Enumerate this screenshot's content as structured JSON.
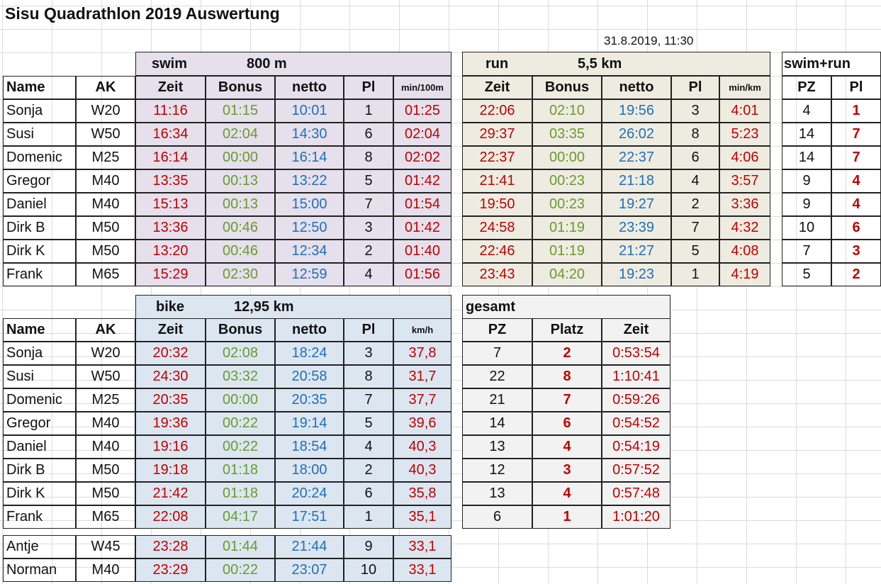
{
  "title": "Sisu Quadrathlon 2019 Auswertung",
  "date": "31.8.2019, 11:30",
  "headers": {
    "name": "Name",
    "ak": "AK",
    "zeit": "Zeit",
    "bonus": "Bonus",
    "netto": "netto",
    "pl": "Pl",
    "pz": "PZ",
    "platz": "Platz"
  },
  "swim": {
    "label": "swim",
    "distance": "800 m",
    "pace_header": "min/100m",
    "rows": [
      {
        "name": "Sonja",
        "ak": "W20",
        "zeit": "11:16",
        "bonus": "01:15",
        "netto": "10:01",
        "pl": "1",
        "pace": "01:25"
      },
      {
        "name": "Susi",
        "ak": "W50",
        "zeit": "16:34",
        "bonus": "02:04",
        "netto": "14:30",
        "pl": "6",
        "pace": "02:04"
      },
      {
        "name": "Domenic",
        "ak": "M25",
        "zeit": "16:14",
        "bonus": "00:00",
        "netto": "16:14",
        "pl": "8",
        "pace": "02:02"
      },
      {
        "name": "Gregor",
        "ak": "M40",
        "zeit": "13:35",
        "bonus": "00:13",
        "netto": "13:22",
        "pl": "5",
        "pace": "01:42"
      },
      {
        "name": "Daniel",
        "ak": "M40",
        "zeit": "15:13",
        "bonus": "00:13",
        "netto": "15:00",
        "pl": "7",
        "pace": "01:54"
      },
      {
        "name": "Dirk B",
        "ak": "M50",
        "zeit": "13:36",
        "bonus": "00:46",
        "netto": "12:50",
        "pl": "3",
        "pace": "01:42"
      },
      {
        "name": "Dirk K",
        "ak": "M50",
        "zeit": "13:20",
        "bonus": "00:46",
        "netto": "12:34",
        "pl": "2",
        "pace": "01:40"
      },
      {
        "name": "Frank",
        "ak": "M65",
        "zeit": "15:29",
        "bonus": "02:30",
        "netto": "12:59",
        "pl": "4",
        "pace": "01:56"
      }
    ]
  },
  "run": {
    "label": "run",
    "distance": "5,5 km",
    "pace_header": "min/km",
    "rows": [
      {
        "zeit": "22:06",
        "bonus": "02:10",
        "netto": "19:56",
        "pl": "3",
        "pace": "4:01"
      },
      {
        "zeit": "29:37",
        "bonus": "03:35",
        "netto": "26:02",
        "pl": "8",
        "pace": "5:23"
      },
      {
        "zeit": "22:37",
        "bonus": "00:00",
        "netto": "22:37",
        "pl": "6",
        "pace": "4:06"
      },
      {
        "zeit": "21:41",
        "bonus": "00:23",
        "netto": "21:18",
        "pl": "4",
        "pace": "3:57"
      },
      {
        "zeit": "19:50",
        "bonus": "00:23",
        "netto": "19:27",
        "pl": "2",
        "pace": "3:36"
      },
      {
        "zeit": "24:58",
        "bonus": "01:19",
        "netto": "23:39",
        "pl": "7",
        "pace": "4:32"
      },
      {
        "zeit": "22:46",
        "bonus": "01:19",
        "netto": "21:27",
        "pl": "5",
        "pace": "4:08"
      },
      {
        "zeit": "23:43",
        "bonus": "04:20",
        "netto": "19:23",
        "pl": "1",
        "pace": "4:19"
      }
    ]
  },
  "swimrun": {
    "label": "swim+run",
    "rows": [
      {
        "pz": "4",
        "pl": "1"
      },
      {
        "pz": "14",
        "pl": "7"
      },
      {
        "pz": "14",
        "pl": "7"
      },
      {
        "pz": "9",
        "pl": "4"
      },
      {
        "pz": "9",
        "pl": "4"
      },
      {
        "pz": "10",
        "pl": "6"
      },
      {
        "pz": "7",
        "pl": "3"
      },
      {
        "pz": "5",
        "pl": "2"
      }
    ]
  },
  "bike": {
    "label": "bike",
    "distance": "12,95 km",
    "pace_header": "km/h",
    "rows": [
      {
        "name": "Sonja",
        "ak": "W20",
        "zeit": "20:32",
        "bonus": "02:08",
        "netto": "18:24",
        "pl": "3",
        "pace": "37,8"
      },
      {
        "name": "Susi",
        "ak": "W50",
        "zeit": "24:30",
        "bonus": "03:32",
        "netto": "20:58",
        "pl": "8",
        "pace": "31,7"
      },
      {
        "name": "Domenic",
        "ak": "M25",
        "zeit": "20:35",
        "bonus": "00:00",
        "netto": "20:35",
        "pl": "7",
        "pace": "37,7"
      },
      {
        "name": "Gregor",
        "ak": "M40",
        "zeit": "19:36",
        "bonus": "00:22",
        "netto": "19:14",
        "pl": "5",
        "pace": "39,6"
      },
      {
        "name": "Daniel",
        "ak": "M40",
        "zeit": "19:16",
        "bonus": "00:22",
        "netto": "18:54",
        "pl": "4",
        "pace": "40,3"
      },
      {
        "name": "Dirk B",
        "ak": "M50",
        "zeit": "19:18",
        "bonus": "01:18",
        "netto": "18:00",
        "pl": "2",
        "pace": "40,3"
      },
      {
        "name": "Dirk K",
        "ak": "M50",
        "zeit": "21:42",
        "bonus": "01:18",
        "netto": "20:24",
        "pl": "6",
        "pace": "35,8"
      },
      {
        "name": "Frank",
        "ak": "M65",
        "zeit": "22:08",
        "bonus": "04:17",
        "netto": "17:51",
        "pl": "1",
        "pace": "35,1"
      }
    ],
    "extra_rows": [
      {
        "name": "Antje",
        "ak": "W45",
        "zeit": "23:28",
        "bonus": "01:44",
        "netto": "21:44",
        "pl": "9",
        "pace": "33,1"
      },
      {
        "name": "Norman",
        "ak": "M40",
        "zeit": "23:29",
        "bonus": "00:22",
        "netto": "23:07",
        "pl": "10",
        "pace": "33,1"
      }
    ]
  },
  "gesamt": {
    "label": "gesamt",
    "rows": [
      {
        "pz": "7",
        "platz": "2",
        "zeit": "0:53:54"
      },
      {
        "pz": "22",
        "platz": "8",
        "zeit": "1:10:41"
      },
      {
        "pz": "21",
        "platz": "7",
        "zeit": "0:59:26"
      },
      {
        "pz": "14",
        "platz": "6",
        "zeit": "0:54:52"
      },
      {
        "pz": "13",
        "platz": "4",
        "zeit": "0:54:19"
      },
      {
        "pz": "12",
        "platz": "3",
        "zeit": "0:57:52"
      },
      {
        "pz": "13",
        "platz": "4",
        "zeit": "0:57:48"
      },
      {
        "pz": "6",
        "platz": "1",
        "zeit": "1:01:20"
      }
    ]
  },
  "colors": {
    "swim_bg": "#e5e0ec",
    "run_bg": "#eeece1",
    "bike_bg": "#dce6f1",
    "gray_bg": "#f2f2f2",
    "red": "#c00000",
    "green": "#6a9a2e",
    "blue": "#1f6fb8"
  }
}
